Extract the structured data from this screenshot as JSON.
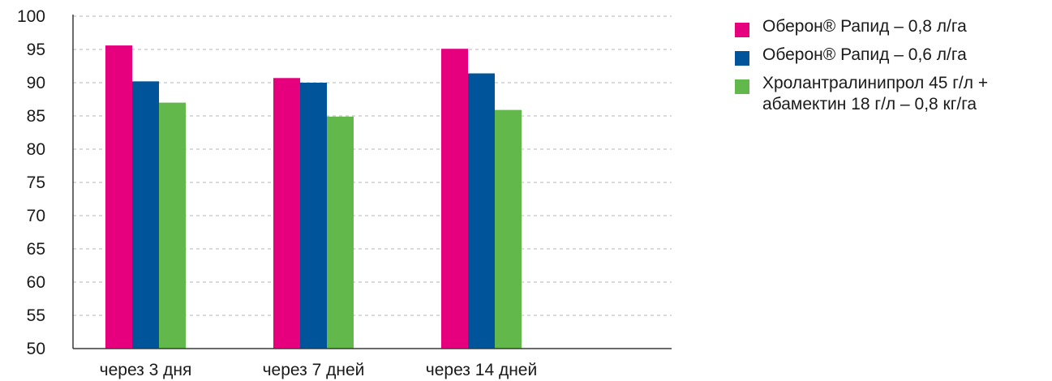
{
  "chart_data": {
    "type": "bar",
    "categories": [
      "через 3 дня",
      "через 7 дней",
      "через 14 дней"
    ],
    "series": [
      {
        "name": "Оберон® Рапид – 0,8 л/га",
        "color": "#e6007e",
        "values": [
          95.6,
          90.7,
          95.1
        ]
      },
      {
        "name": "Оберон® Рапид – 0,6 л/га",
        "color": "#00559a",
        "values": [
          90.2,
          90.0,
          91.4
        ]
      },
      {
        "name": "Хролантралинипрол 45 г/л +\nабамектин 18 г/л – 0,8 кг/га",
        "color": "#62b84a",
        "values": [
          87.0,
          84.9,
          85.9
        ]
      }
    ],
    "ylim": [
      50,
      100
    ],
    "yticks": [
      "50",
      "55",
      "60",
      "65",
      "70",
      "75",
      "80",
      "85",
      "90",
      "95",
      "100"
    ],
    "grid": "horizontal dashed",
    "legend_position": "right",
    "title": "",
    "xlabel": "",
    "ylabel": ""
  }
}
